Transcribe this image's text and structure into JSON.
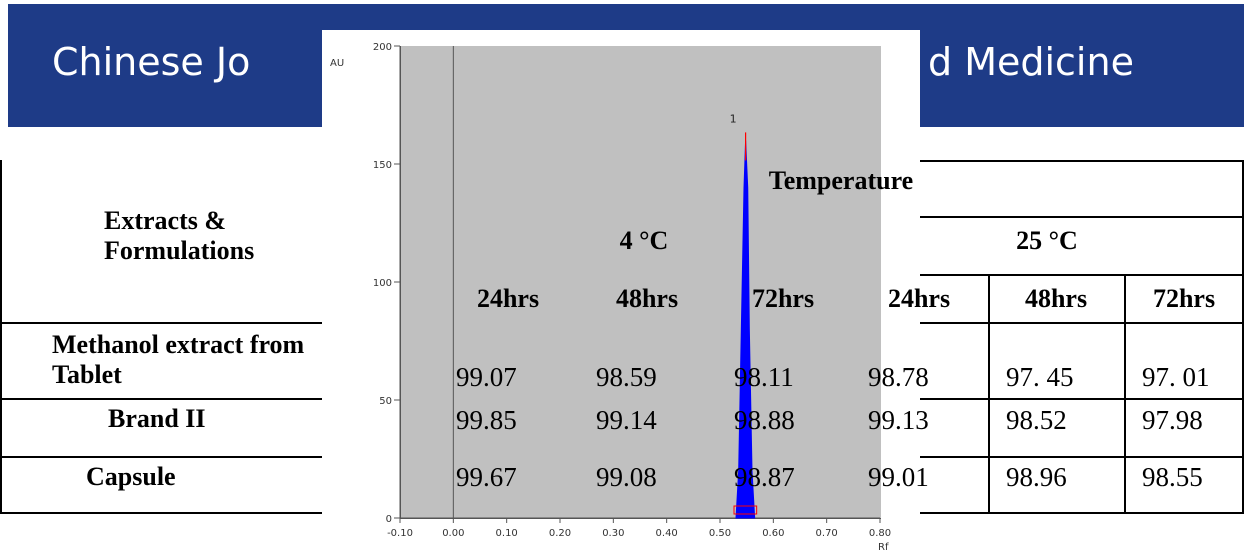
{
  "banner": {
    "text_left": "Chinese Jo",
    "text_right": "d Medicine",
    "color": "#1e3b87"
  },
  "table": {
    "row_header": "Extracts &\nFormulations",
    "temperature_label": "Temperature",
    "groups": [
      "4 °C",
      "25 °C"
    ],
    "times": [
      "24hrs",
      "48hrs",
      "72hrs",
      "24hrs",
      "48hrs",
      "72hrs"
    ],
    "rows": [
      {
        "name": "Methanol extract from\nTablet",
        "values": [
          "99.07",
          "98.59",
          "98.11",
          "98.78",
          "97. 45",
          "97. 01"
        ]
      },
      {
        "name": "Brand II",
        "values": [
          "99.85",
          "99.14",
          "98.88",
          "99.13",
          "98.52",
          "97.98"
        ]
      },
      {
        "name": "Capsule",
        "values": [
          "99.67",
          "99.08",
          "98.87",
          "99.01",
          "98.96",
          "98.55"
        ]
      }
    ]
  },
  "chart_data": {
    "type": "line",
    "ylabel": "AU",
    "xlabel": "Rf",
    "xlim": [
      -0.1,
      0.8
    ],
    "ylim": [
      0,
      200
    ],
    "x_ticks": [
      "-0.10",
      "0.00",
      "0.10",
      "0.20",
      "0.30",
      "0.40",
      "0.50",
      "0.60",
      "0.70",
      "0.80"
    ],
    "y_ticks": [
      "0",
      "50",
      "100",
      "150",
      "200"
    ],
    "peak_label": "1",
    "series": [
      {
        "color": "#0000ff",
        "points": [
          [
            0.53,
            0
          ],
          [
            0.535,
            20
          ],
          [
            0.54,
            80
          ],
          [
            0.545,
            140
          ],
          [
            0.548,
            160
          ],
          [
            0.552,
            140
          ],
          [
            0.555,
            80
          ],
          [
            0.56,
            20
          ],
          [
            0.565,
            0
          ]
        ]
      }
    ],
    "peak_marker_color": "#ff0000",
    "grid": false
  }
}
